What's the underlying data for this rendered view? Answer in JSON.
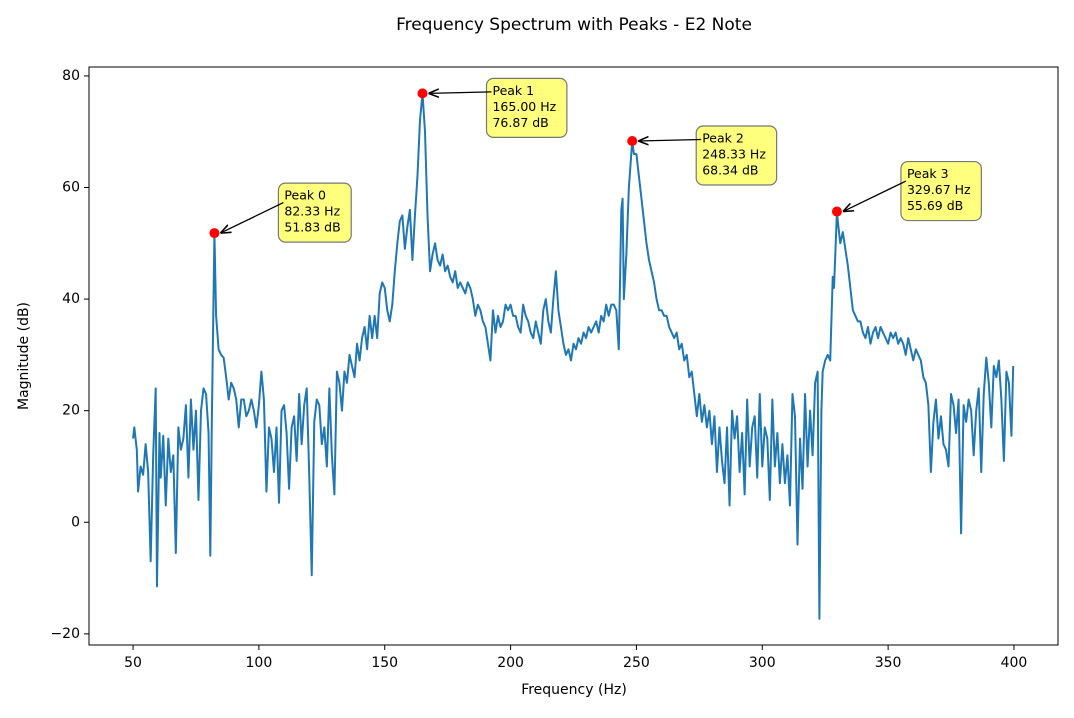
{
  "chart_data": {
    "type": "line",
    "title": "Frequency Spectrum with Peaks - E2 Note",
    "x_label": "Frequency (Hz)",
    "y_label": "Magnitude (dB)",
    "color": "#1f77b4",
    "grid": false,
    "xlim": [
      32.5,
      417.5
    ],
    "xticks": [
      50,
      100,
      150,
      200,
      250,
      300,
      350,
      400
    ],
    "ylim": [
      -22,
      81.6
    ],
    "yticks": [
      {
        "value": -20,
        "label": "−20"
      },
      0,
      20,
      40,
      60,
      80
    ],
    "x": [
      50,
      50.5,
      51.5,
      52,
      53,
      54,
      55,
      56,
      57,
      58,
      59,
      59.5,
      60.5,
      61,
      62,
      63,
      64,
      65,
      66,
      67,
      68,
      69,
      70,
      71,
      72,
      73,
      74,
      75,
      76,
      77,
      78,
      79,
      80,
      80.7,
      81.3,
      82.33,
      83,
      84,
      85,
      86,
      87,
      88,
      89,
      90,
      91,
      92,
      93,
      94,
      95,
      96,
      97,
      98,
      99,
      100,
      101,
      102,
      103,
      104,
      105,
      106,
      107,
      108,
      109,
      110,
      111,
      112,
      113,
      114,
      115,
      116,
      117,
      118,
      119,
      120,
      121,
      122,
      123,
      124,
      125,
      126,
      127,
      128,
      129,
      130,
      131,
      132,
      133,
      134,
      135,
      136,
      137,
      138,
      139,
      140,
      141,
      142,
      143,
      144,
      145,
      146,
      147,
      148,
      149,
      150,
      151,
      152,
      153,
      154,
      155,
      156,
      157,
      158,
      159,
      160,
      161,
      162,
      163,
      164,
      165,
      166,
      167,
      168,
      169,
      170,
      171,
      172,
      173,
      174,
      175,
      176,
      177,
      178,
      179,
      180,
      181,
      182,
      183,
      184,
      185,
      186,
      187,
      188,
      189,
      190,
      191,
      192,
      193,
      194,
      195,
      196,
      197,
      198,
      199,
      200,
      201,
      202,
      203,
      204,
      205,
      206,
      207,
      208,
      209,
      210,
      211,
      212,
      213,
      214,
      215,
      216,
      217,
      218,
      219,
      220,
      221,
      222,
      223,
      224,
      225,
      226,
      227,
      228,
      229,
      230,
      231,
      232,
      233,
      234,
      235,
      236,
      237,
      238,
      239,
      240,
      241,
      242,
      243,
      244,
      244.5,
      245,
      246,
      247,
      248.33,
      249,
      250,
      251,
      252,
      253,
      254,
      255,
      256,
      257,
      258,
      259,
      260,
      261,
      262,
      263,
      264,
      265,
      266,
      267,
      268,
      269,
      270,
      271,
      272,
      273,
      274,
      275,
      276,
      277,
      278,
      279,
      280,
      281,
      282,
      283,
      284,
      285,
      286,
      287,
      288,
      289,
      290,
      291,
      292,
      293,
      294,
      295,
      296,
      297,
      298,
      299,
      300,
      301,
      302,
      303,
      304,
      305,
      306,
      307,
      308,
      309,
      310,
      311,
      312,
      313,
      314,
      315,
      316,
      317,
      318,
      319,
      320,
      321,
      322,
      322.7,
      323.5,
      324,
      325,
      326,
      327,
      328,
      328.5,
      329.67,
      330,
      331,
      332,
      333,
      334,
      335,
      336,
      337,
      338,
      339,
      340,
      341,
      342,
      343,
      344,
      345,
      346,
      347,
      348,
      349,
      350,
      351,
      352,
      353,
      354,
      355,
      356,
      357,
      358,
      359,
      360,
      361,
      362,
      363,
      364,
      365,
      366,
      367,
      368,
      369,
      370,
      371,
      372,
      373,
      374,
      375,
      376,
      377,
      378,
      379,
      380,
      381,
      382,
      383,
      384,
      385,
      386,
      387,
      388,
      389,
      390,
      391,
      392,
      393,
      394,
      395,
      396,
      397,
      398,
      399,
      399.7
    ],
    "values": [
      15,
      17,
      13,
      5.5,
      10,
      8.5,
      14,
      9,
      -7,
      12,
      24,
      -11.5,
      16,
      8,
      15.5,
      3,
      15,
      9,
      12,
      -5.5,
      17,
      13,
      15,
      21,
      8,
      22,
      13,
      20,
      4,
      20,
      24,
      23,
      16,
      -6,
      18,
      51.83,
      37,
      31,
      30,
      29.5,
      26,
      22,
      25,
      24,
      22,
      17,
      22,
      22,
      19,
      20,
      22,
      20,
      17,
      21,
      27,
      22,
      5.5,
      17,
      15,
      9,
      17,
      3.5,
      20,
      21,
      16,
      6,
      17,
      19,
      11,
      23,
      14,
      21,
      24,
      8.5,
      -9.5,
      18,
      22,
      21,
      14,
      17,
      10,
      24,
      12,
      5,
      27,
      25,
      20,
      27,
      25,
      30,
      28,
      26,
      32,
      29,
      33,
      35,
      31,
      37,
      33,
      37,
      33,
      41,
      43,
      42,
      38,
      36,
      39,
      45,
      50,
      54,
      55,
      49,
      53,
      56,
      47,
      55,
      62,
      72,
      76.87,
      70,
      55,
      45,
      48,
      50,
      47,
      46,
      48,
      45,
      46,
      44,
      43,
      45,
      42,
      43,
      42,
      41,
      43,
      42,
      40,
      37,
      39,
      38,
      36,
      35,
      32,
      29,
      38,
      34,
      37,
      35,
      36,
      39,
      38,
      39,
      37,
      37,
      35,
      34,
      39,
      37,
      36,
      34,
      33,
      36,
      34,
      32,
      38,
      40,
      36,
      34,
      40,
      45,
      38,
      35,
      32,
      30,
      31,
      29,
      32,
      31,
      33,
      32,
      34,
      33,
      35,
      34,
      35,
      36,
      34,
      37,
      36,
      39,
      37,
      39,
      39,
      38,
      31,
      56,
      58,
      40,
      48,
      60,
      68.34,
      66,
      66,
      62,
      58,
      54,
      50,
      47,
      45,
      43,
      40,
      38,
      38,
      37,
      37,
      35,
      34,
      33,
      34,
      31,
      32,
      29,
      30,
      26,
      27,
      23,
      19,
      23,
      18,
      21,
      17,
      20,
      14,
      19,
      9,
      17,
      11,
      7,
      17,
      3,
      20,
      15,
      19,
      9,
      16,
      5,
      22,
      10,
      17,
      19,
      8,
      23,
      10,
      17,
      15,
      4,
      22,
      10,
      16,
      7,
      14,
      7,
      12,
      3,
      23,
      19,
      -4,
      15,
      6,
      23,
      10,
      20,
      12,
      25,
      27,
      -17.3,
      20,
      27,
      29,
      30,
      29,
      44,
      42,
      55.69,
      54,
      50,
      52,
      49,
      46,
      42,
      38,
      37,
      36,
      36,
      34,
      33,
      35,
      32,
      34,
      35,
      33,
      35,
      34,
      33,
      32,
      34,
      33,
      34,
      32,
      33,
      32,
      30,
      33,
      31,
      29,
      31,
      30,
      29,
      26,
      25,
      21,
      9,
      18,
      22,
      15,
      19,
      14,
      13,
      10,
      23,
      21,
      16,
      22,
      -2,
      21,
      18,
      22,
      20,
      12,
      20,
      24,
      9,
      23,
      29.5,
      25,
      17,
      28,
      26,
      29,
      22,
      11,
      27,
      25,
      15.5,
      28
    ],
    "peak_color": "#ff0000",
    "peaks": [
      {
        "x": 82.33,
        "y": 51.83,
        "label": [
          "Peak 0",
          "82.33 Hz",
          "51.83 dB"
        ]
      },
      {
        "x": 165.0,
        "y": 76.87,
        "label": [
          "Peak 1",
          "165.00 Hz",
          "76.87 dB"
        ]
      },
      {
        "x": 248.33,
        "y": 68.34,
        "label": [
          "Peak 2",
          "248.33 Hz",
          "68.34 dB"
        ]
      },
      {
        "x": 329.67,
        "y": 55.69,
        "label": [
          "Peak 3",
          "329.67 Hz",
          "55.69 dB"
        ]
      }
    ]
  }
}
